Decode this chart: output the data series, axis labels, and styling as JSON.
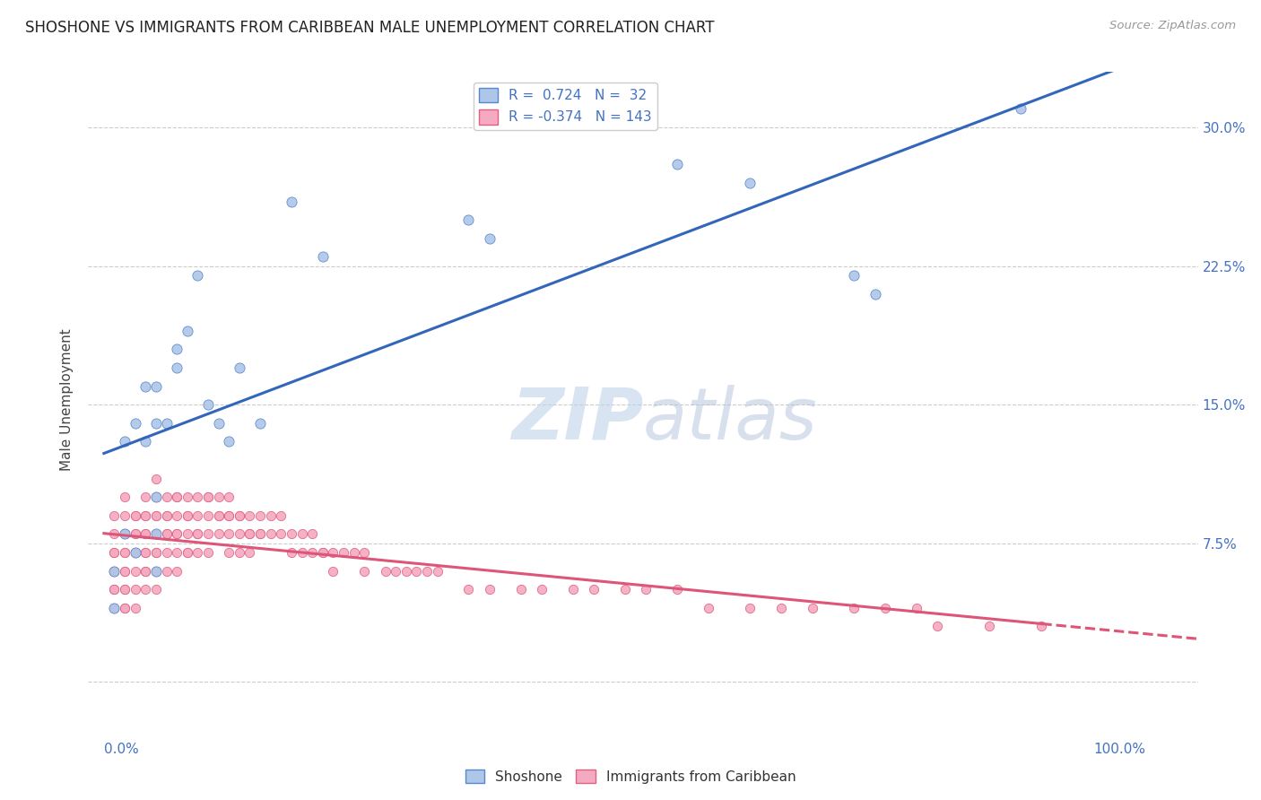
{
  "title": "SHOSHONE VS IMMIGRANTS FROM CARIBBEAN MALE UNEMPLOYMENT CORRELATION CHART",
  "source": "Source: ZipAtlas.com",
  "ylabel": "Male Unemployment",
  "yticks": [
    0.0,
    0.075,
    0.15,
    0.225,
    0.3
  ],
  "ytick_labels": [
    "",
    "7.5%",
    "15.0%",
    "22.5%",
    "30.0%"
  ],
  "ylim": [
    -0.025,
    0.33
  ],
  "xlim": [
    -0.015,
    1.05
  ],
  "r_shoshone": 0.724,
  "n_shoshone": 32,
  "r_caribbean": -0.374,
  "n_caribbean": 143,
  "color_shoshone_fill": "#aec6e8",
  "color_shoshone_edge": "#5588cc",
  "color_caribbean_fill": "#f4aac0",
  "color_caribbean_edge": "#e06080",
  "color_shoshone_line": "#3366bb",
  "color_caribbean_line": "#dd5577",
  "shoshone_x": [
    0.01,
    0.01,
    0.02,
    0.02,
    0.03,
    0.03,
    0.04,
    0.04,
    0.05,
    0.05,
    0.06,
    0.07,
    0.07,
    0.08,
    0.09,
    0.1,
    0.11,
    0.13,
    0.15,
    0.18,
    0.21,
    0.35,
    0.55,
    0.62,
    0.72,
    0.88
  ],
  "shoshone_y": [
    0.04,
    0.06,
    0.08,
    0.13,
    0.07,
    0.14,
    0.13,
    0.16,
    0.14,
    0.16,
    0.14,
    0.17,
    0.18,
    0.19,
    0.22,
    0.15,
    0.14,
    0.17,
    0.14,
    0.26,
    0.23,
    0.25,
    0.28,
    0.27,
    0.22,
    0.31
  ],
  "shoshone_x_full": [
    0.01,
    0.01,
    0.02,
    0.02,
    0.03,
    0.03,
    0.04,
    0.04,
    0.05,
    0.05,
    0.05,
    0.05,
    0.05,
    0.06,
    0.07,
    0.07,
    0.08,
    0.09,
    0.1,
    0.11,
    0.12,
    0.13,
    0.15,
    0.18,
    0.21,
    0.35,
    0.37,
    0.55,
    0.62,
    0.72,
    0.74,
    0.88
  ],
  "shoshone_y_full": [
    0.04,
    0.06,
    0.08,
    0.13,
    0.07,
    0.14,
    0.13,
    0.16,
    0.06,
    0.14,
    0.1,
    0.08,
    0.16,
    0.14,
    0.17,
    0.18,
    0.19,
    0.22,
    0.15,
    0.14,
    0.13,
    0.17,
    0.14,
    0.26,
    0.23,
    0.25,
    0.24,
    0.28,
    0.27,
    0.22,
    0.21,
    0.31
  ],
  "caribbean_x": [
    0.01,
    0.01,
    0.01,
    0.01,
    0.01,
    0.01,
    0.01,
    0.01,
    0.01,
    0.01,
    0.02,
    0.02,
    0.02,
    0.02,
    0.02,
    0.02,
    0.02,
    0.02,
    0.02,
    0.02,
    0.02,
    0.02,
    0.03,
    0.03,
    0.03,
    0.03,
    0.03,
    0.03,
    0.03,
    0.03,
    0.03,
    0.04,
    0.04,
    0.04,
    0.04,
    0.04,
    0.04,
    0.04,
    0.04,
    0.04,
    0.04,
    0.05,
    0.05,
    0.05,
    0.05,
    0.05,
    0.05,
    0.05,
    0.05,
    0.05,
    0.06,
    0.06,
    0.06,
    0.06,
    0.06,
    0.06,
    0.06,
    0.07,
    0.07,
    0.07,
    0.07,
    0.07,
    0.07,
    0.07,
    0.08,
    0.08,
    0.08,
    0.08,
    0.08,
    0.08,
    0.09,
    0.09,
    0.09,
    0.09,
    0.09,
    0.1,
    0.1,
    0.1,
    0.1,
    0.1,
    0.11,
    0.11,
    0.11,
    0.11,
    0.12,
    0.12,
    0.12,
    0.12,
    0.12,
    0.13,
    0.13,
    0.13,
    0.13,
    0.14,
    0.14,
    0.14,
    0.14,
    0.15,
    0.15,
    0.15,
    0.16,
    0.16,
    0.17,
    0.17,
    0.18,
    0.18,
    0.19,
    0.19,
    0.2,
    0.2,
    0.21,
    0.21,
    0.22,
    0.22,
    0.23,
    0.24,
    0.25,
    0.25,
    0.27,
    0.28,
    0.29,
    0.3,
    0.31,
    0.32,
    0.35,
    0.37,
    0.4,
    0.42,
    0.45,
    0.47,
    0.5,
    0.52,
    0.55,
    0.58,
    0.62,
    0.65,
    0.68,
    0.72,
    0.75,
    0.78,
    0.8,
    0.85,
    0.9
  ],
  "caribbean_y": [
    0.09,
    0.08,
    0.07,
    0.07,
    0.06,
    0.06,
    0.06,
    0.05,
    0.05,
    0.04,
    0.1,
    0.09,
    0.08,
    0.08,
    0.07,
    0.07,
    0.06,
    0.06,
    0.05,
    0.05,
    0.04,
    0.04,
    0.09,
    0.09,
    0.08,
    0.08,
    0.07,
    0.07,
    0.06,
    0.05,
    0.04,
    0.1,
    0.09,
    0.09,
    0.08,
    0.08,
    0.07,
    0.07,
    0.06,
    0.06,
    0.05,
    0.11,
    0.1,
    0.09,
    0.09,
    0.08,
    0.07,
    0.07,
    0.06,
    0.05,
    0.1,
    0.09,
    0.09,
    0.08,
    0.08,
    0.07,
    0.06,
    0.1,
    0.1,
    0.09,
    0.08,
    0.08,
    0.07,
    0.06,
    0.1,
    0.09,
    0.09,
    0.08,
    0.07,
    0.07,
    0.1,
    0.09,
    0.08,
    0.08,
    0.07,
    0.1,
    0.1,
    0.09,
    0.08,
    0.07,
    0.1,
    0.09,
    0.09,
    0.08,
    0.1,
    0.09,
    0.09,
    0.08,
    0.07,
    0.09,
    0.09,
    0.08,
    0.07,
    0.09,
    0.08,
    0.08,
    0.07,
    0.09,
    0.08,
    0.08,
    0.09,
    0.08,
    0.09,
    0.08,
    0.08,
    0.07,
    0.08,
    0.07,
    0.08,
    0.07,
    0.07,
    0.07,
    0.07,
    0.06,
    0.07,
    0.07,
    0.07,
    0.06,
    0.06,
    0.06,
    0.06,
    0.06,
    0.06,
    0.06,
    0.05,
    0.05,
    0.05,
    0.05,
    0.05,
    0.05,
    0.05,
    0.05,
    0.05,
    0.04,
    0.04,
    0.04,
    0.04,
    0.04,
    0.04,
    0.04,
    0.03,
    0.03,
    0.03
  ]
}
